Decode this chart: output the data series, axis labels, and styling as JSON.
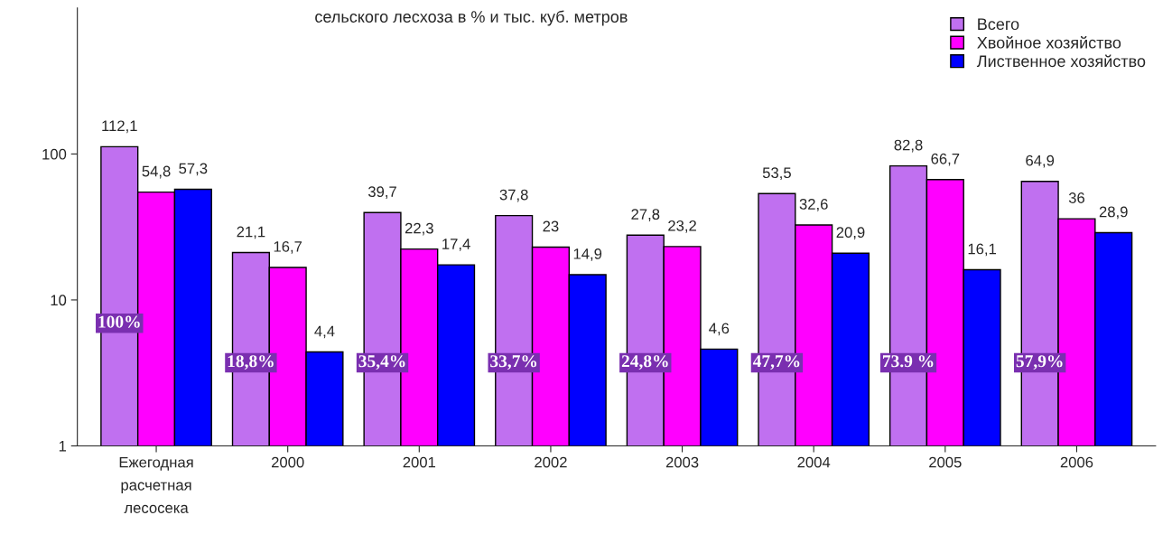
{
  "chart_data": {
    "type": "bar",
    "title": "сельского лесхоза в % и тыс. куб. метров",
    "categories": [
      "Ежегодная\nрасчетная\nлесосека",
      "2000",
      "2001",
      "2002",
      "2003",
      "2004",
      "2005",
      "2006"
    ],
    "series": [
      {
        "name": "Всего",
        "color": "#c070f0",
        "values": [
          112.1,
          21.1,
          39.7,
          37.8,
          27.8,
          53.5,
          82.8,
          64.9
        ],
        "value_labels": [
          "112,1",
          "21,1",
          "39,7",
          "37,8",
          "27,8",
          "53,5",
          "82,8",
          "64,9"
        ]
      },
      {
        "name": "Хвойное хозяйство",
        "color": "#ff00ff",
        "values": [
          54.8,
          16.7,
          22.3,
          23,
          23.2,
          32.6,
          66.7,
          36
        ],
        "value_labels": [
          "54,8",
          "16,7",
          "22,3",
          "23",
          "23,2",
          "32,6",
          "66,7",
          "36"
        ]
      },
      {
        "name": "Лиственное хозяйство",
        "color": "#0000ff",
        "values": [
          57.3,
          4.4,
          17.4,
          14.9,
          4.6,
          20.9,
          16.1,
          28.9
        ],
        "value_labels": [
          "57,3",
          "4,4",
          "17,4",
          "14,9",
          "4,6",
          "20,9",
          "16,1",
          "28,9"
        ]
      }
    ],
    "log": true,
    "ylim": [
      1,
      1000
    ],
    "yticks": [
      1,
      10,
      100
    ],
    "grid": false,
    "legend": "top right",
    "annotations": [
      "100%",
      "18,8%",
      "35,4%",
      "33,7%",
      "24,8%",
      "47,7%",
      "73.9 %",
      "57,9%"
    ]
  }
}
